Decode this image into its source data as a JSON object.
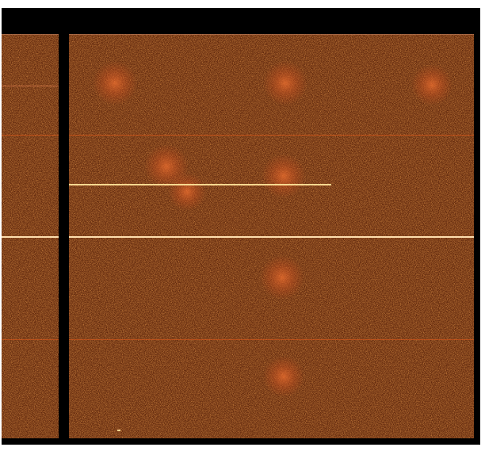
{
  "image": {
    "kind": "detector frame, heat colormap",
    "colors": {
      "background": "#6b2a0c",
      "noise_bright": "#e0601a",
      "hot_line": "#ffd890",
      "frame": "#000000"
    }
  }
}
